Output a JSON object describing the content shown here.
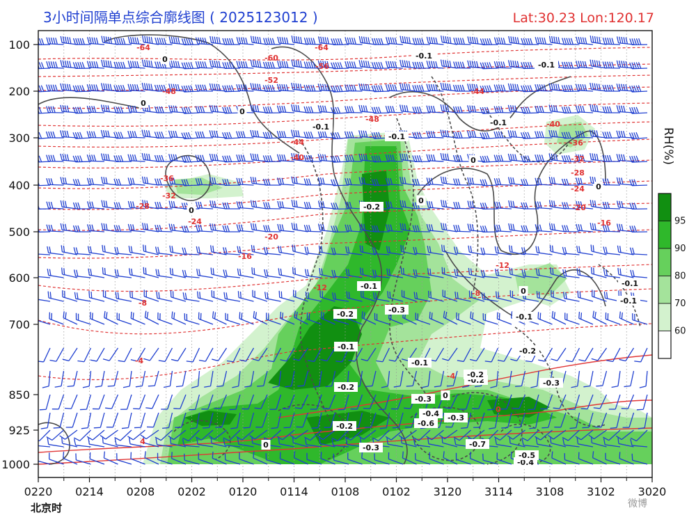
{
  "header": {
    "title": "3小时间隔单点综合廓线图 ( 2025123012 )",
    "latlon": "Lat:30.23  Lon:120.17"
  },
  "chart_data": {
    "type": "heatmap",
    "x_tick_labels": [
      "0220",
      "0214",
      "0208",
      "0202",
      "0120",
      "0114",
      "0108",
      "0102",
      "3120",
      "3114",
      "3108",
      "3102",
      "3020"
    ],
    "y_tick_labels": [
      100,
      200,
      300,
      400,
      500,
      600,
      700,
      850,
      925,
      1000
    ],
    "time_zone_label": "北京时",
    "colorbar": {
      "title": "RH(%)",
      "ticks": [
        60,
        70,
        80,
        90,
        95
      ],
      "colors": [
        "#ffffff",
        "#d3f2ce",
        "#a4e39b",
        "#66d05c",
        "#2fb82b",
        "#118f11"
      ]
    },
    "temperature_contour_labels": [
      "-64",
      "-64",
      "-60",
      "-56",
      "-52",
      "-48",
      "-48",
      "-44",
      "-44",
      "-40",
      "-40",
      "-36",
      "-36",
      "-32",
      "-32",
      "-28",
      "-28",
      "-24",
      "-24",
      "-20",
      "-20",
      "-16",
      "-16",
      "-12",
      "-12",
      "-8",
      "-8",
      "-4",
      "-4",
      "0",
      "0",
      "4"
    ],
    "vertical_velocity_labels": [
      "0",
      "0",
      "0",
      "0",
      "0",
      "0",
      "0",
      "0",
      "0",
      "0",
      "-0.1",
      "-0.1",
      "-0.1",
      "-0.1",
      "-0.1",
      "-0.1",
      "-0.1",
      "-0.1",
      "-0.1",
      "-0.1",
      "-0.1",
      "-0.2",
      "-0.2",
      "-0.2",
      "-0.2",
      "-0.2",
      "-0.2",
      "-0.2",
      "-0.3",
      "-0.3",
      "-0.3",
      "-0.3",
      "-0.3",
      "-0.4",
      "-0.4",
      "-0.5",
      "-0.6",
      "-0.7"
    ]
  },
  "watermark": "微博"
}
